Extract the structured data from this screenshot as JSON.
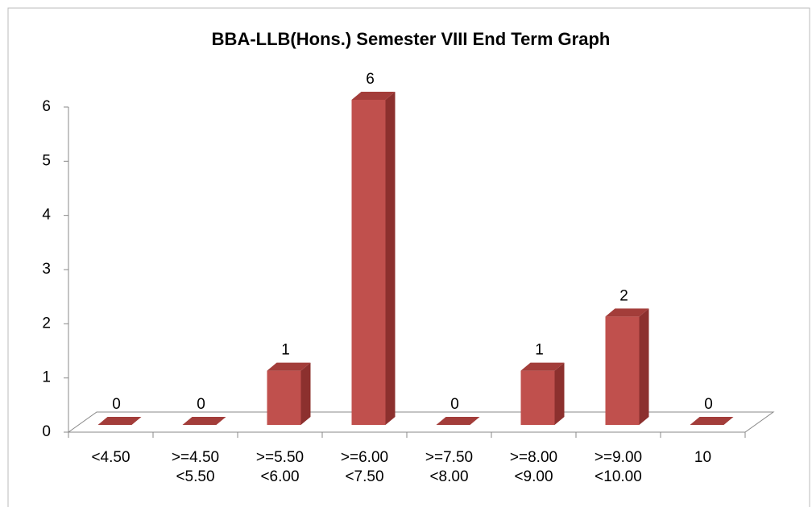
{
  "chart_data": {
    "type": "bar3d",
    "title": "BBA-LLB(Hons.) Semester VIII End Term Graph",
    "categories": [
      "<4.50",
      ">=4.50\n<5.50",
      ">=5.50\n<6.00",
      ">=6.00\n<7.50",
      ">=7.50\n<8.00",
      ">=8.00\n<9.00",
      ">=9.00\n<10.00",
      "10"
    ],
    "values": [
      0,
      0,
      1,
      6,
      0,
      1,
      2,
      0
    ],
    "color": "#c0504d",
    "ylim": [
      0,
      6
    ],
    "yticks": [
      0,
      1,
      2,
      3,
      4,
      5,
      6
    ],
    "grid": false
  }
}
